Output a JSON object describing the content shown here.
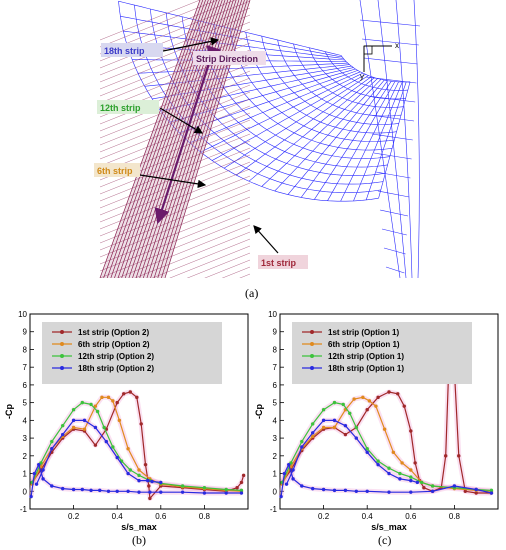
{
  "captions": {
    "a": "(a)",
    "b": "(b)",
    "c": "(c)"
  },
  "mesh": {
    "labels": [
      "18th strip",
      "Strip Direction",
      "12th strip",
      "6th strip",
      "1st strip"
    ],
    "axes": {
      "x": "x",
      "y": "y"
    },
    "colors": {
      "strips": "#8a2050",
      "grid": "#2a2aff",
      "arrow": "#6a1a6a"
    }
  },
  "chart_data": [
    {
      "type": "line",
      "xlabel": "s/s_max",
      "ylabel": "-Cp",
      "xlim": [
        0,
        1
      ],
      "ylim": [
        -1,
        10
      ],
      "x_ticks": [
        "0.2",
        "0.4",
        "0.6",
        "0.8"
      ],
      "y_ticks": [
        "-1",
        "0",
        "1",
        "2",
        "3",
        "4",
        "5",
        "6",
        "7",
        "8",
        "9",
        "10"
      ],
      "legend": "top-left",
      "series": [
        {
          "name": "1st strip (Option 2)",
          "color": "#a0282a",
          "x": [
            0.01,
            0.05,
            0.1,
            0.15,
            0.2,
            0.25,
            0.3,
            0.35,
            0.4,
            0.43,
            0.46,
            0.49,
            0.51,
            0.53,
            0.545,
            0.55,
            0.6,
            0.7,
            0.8,
            0.9,
            0.95,
            0.97,
            0.98
          ],
          "y": [
            0.5,
            1.2,
            2.2,
            3.0,
            3.5,
            3.4,
            2.6,
            3.5,
            5.0,
            5.5,
            5.6,
            5.3,
            3.8,
            1.5,
            0.3,
            -0.4,
            0.3,
            0.2,
            0.1,
            0.0,
            0.2,
            0.5,
            0.9
          ]
        },
        {
          "name": "6th strip (Option 2)",
          "color": "#e08a1e",
          "x": [
            0.01,
            0.05,
            0.1,
            0.15,
            0.2,
            0.25,
            0.3,
            0.33,
            0.36,
            0.38,
            0.41,
            0.45,
            0.5,
            0.55,
            0.6,
            0.7,
            0.8,
            0.9,
            0.97
          ],
          "y": [
            0.4,
            1.4,
            2.4,
            3.1,
            3.6,
            3.5,
            4.8,
            5.3,
            5.3,
            5.1,
            4.0,
            2.4,
            1.2,
            0.7,
            0.4,
            0.25,
            0.15,
            0.05,
            0.0
          ]
        },
        {
          "name": "12th strip (Option 2)",
          "color": "#3cc23c",
          "x": [
            0.01,
            0.05,
            0.1,
            0.15,
            0.2,
            0.24,
            0.28,
            0.31,
            0.34,
            0.38,
            0.42,
            0.46,
            0.5,
            0.55,
            0.6,
            0.7,
            0.8,
            0.9,
            0.97
          ],
          "y": [
            0.5,
            1.6,
            2.8,
            3.7,
            4.6,
            5.0,
            4.9,
            4.5,
            3.6,
            2.5,
            1.7,
            1.2,
            0.9,
            0.6,
            0.45,
            0.3,
            0.2,
            0.1,
            0.05
          ]
        },
        {
          "name": "18th strip (Option 2)",
          "color": "#2a2ae0",
          "x": [
            0.005,
            0.02,
            0.04,
            0.06,
            0.1,
            0.15,
            0.2,
            0.24,
            0.28,
            0.32,
            0.36,
            0.4,
            0.45,
            0.5,
            0.55,
            0.6,
            0.7,
            0.8,
            0.9,
            0.97
          ],
          "y": [
            -0.3,
            1.0,
            1.5,
            0.7,
            0.3,
            0.15,
            0.1,
            0.1,
            0.05,
            0.05,
            0.0,
            0.0,
            0.0,
            -0.05,
            -0.05,
            -0.05,
            -0.05,
            -0.1,
            -0.1,
            -0.1
          ]
        },
        {
          "name": "",
          "color": "#2a2ae0",
          "x": [
            0.03,
            0.06,
            0.1,
            0.15,
            0.2,
            0.25,
            0.3,
            0.35,
            0.4,
            0.45,
            0.5,
            0.54,
            0.56,
            0.6
          ],
          "y": [
            0.4,
            1.2,
            2.4,
            3.2,
            4.0,
            4.0,
            3.6,
            2.8,
            1.9,
            1.0,
            0.6,
            0.6,
            0.55,
            0.5
          ]
        }
      ]
    },
    {
      "type": "line",
      "xlabel": "s/s_max",
      "ylabel": "-Cp",
      "xlim": [
        0,
        1
      ],
      "ylim": [
        -1,
        10
      ],
      "x_ticks": [
        "0.2",
        "0.4",
        "0.6",
        "0.8"
      ],
      "y_ticks": [
        "-1",
        "0",
        "1",
        "2",
        "3",
        "4",
        "5",
        "6",
        "7",
        "8",
        "9",
        "10"
      ],
      "legend": "top-left",
      "series": [
        {
          "name": "1st strip (Option 1)",
          "color": "#a0282a",
          "x": [
            0.01,
            0.05,
            0.1,
            0.15,
            0.2,
            0.25,
            0.3,
            0.35,
            0.4,
            0.45,
            0.5,
            0.54,
            0.57,
            0.6,
            0.62,
            0.64,
            0.66,
            0.7,
            0.74,
            0.76,
            0.78,
            0.8,
            0.82,
            0.85,
            0.9,
            0.97
          ],
          "y": [
            0.5,
            1.2,
            2.3,
            3.0,
            3.5,
            3.6,
            3.2,
            3.6,
            4.6,
            5.3,
            5.6,
            5.5,
            4.8,
            3.4,
            1.6,
            0.6,
            0.2,
            0.0,
            0.2,
            2.0,
            9.0,
            6.8,
            2.0,
            0.0,
            -0.1,
            -0.1
          ]
        },
        {
          "name": "6th strip (Option 1)",
          "color": "#e08a1e",
          "x": [
            0.01,
            0.05,
            0.1,
            0.15,
            0.2,
            0.25,
            0.3,
            0.34,
            0.38,
            0.41,
            0.44,
            0.48,
            0.52,
            0.56,
            0.6,
            0.65,
            0.7,
            0.8,
            0.9,
            0.97
          ],
          "y": [
            0.4,
            1.4,
            2.4,
            3.1,
            3.6,
            3.6,
            4.6,
            5.2,
            5.3,
            5.1,
            4.8,
            3.5,
            2.2,
            1.6,
            1.2,
            0.5,
            0.3,
            0.15,
            0.05,
            0.0
          ]
        },
        {
          "name": "12th strip (Option 1)",
          "color": "#3cc23c",
          "x": [
            0.01,
            0.05,
            0.1,
            0.15,
            0.2,
            0.25,
            0.29,
            0.32,
            0.35,
            0.4,
            0.45,
            0.5,
            0.55,
            0.6,
            0.65,
            0.7,
            0.8,
            0.9,
            0.97
          ],
          "y": [
            0.5,
            1.6,
            2.8,
            3.8,
            4.6,
            5.0,
            4.9,
            4.4,
            3.6,
            2.4,
            1.7,
            1.3,
            1.0,
            0.8,
            0.5,
            0.3,
            0.2,
            0.1,
            0.05
          ]
        },
        {
          "name": "18th strip (Option 1)",
          "color": "#2a2ae0",
          "x": [
            0.005,
            0.02,
            0.04,
            0.06,
            0.1,
            0.15,
            0.2,
            0.25,
            0.3,
            0.35,
            0.4,
            0.5,
            0.6,
            0.7,
            0.8,
            0.9,
            0.97
          ],
          "y": [
            -0.3,
            1.0,
            1.5,
            0.7,
            0.3,
            0.15,
            0.1,
            0.05,
            0.05,
            0.0,
            0.0,
            -0.05,
            -0.05,
            0.0,
            0.3,
            0.1,
            -0.1
          ]
        },
        {
          "name": "",
          "color": "#2a2ae0",
          "x": [
            0.03,
            0.06,
            0.1,
            0.15,
            0.2,
            0.25,
            0.3,
            0.35,
            0.4,
            0.45,
            0.5,
            0.55,
            0.6,
            0.63
          ],
          "y": [
            0.4,
            1.2,
            2.5,
            3.3,
            4.0,
            4.0,
            3.7,
            3.0,
            2.2,
            1.5,
            1.0,
            0.7,
            0.6,
            0.5
          ]
        }
      ]
    }
  ]
}
